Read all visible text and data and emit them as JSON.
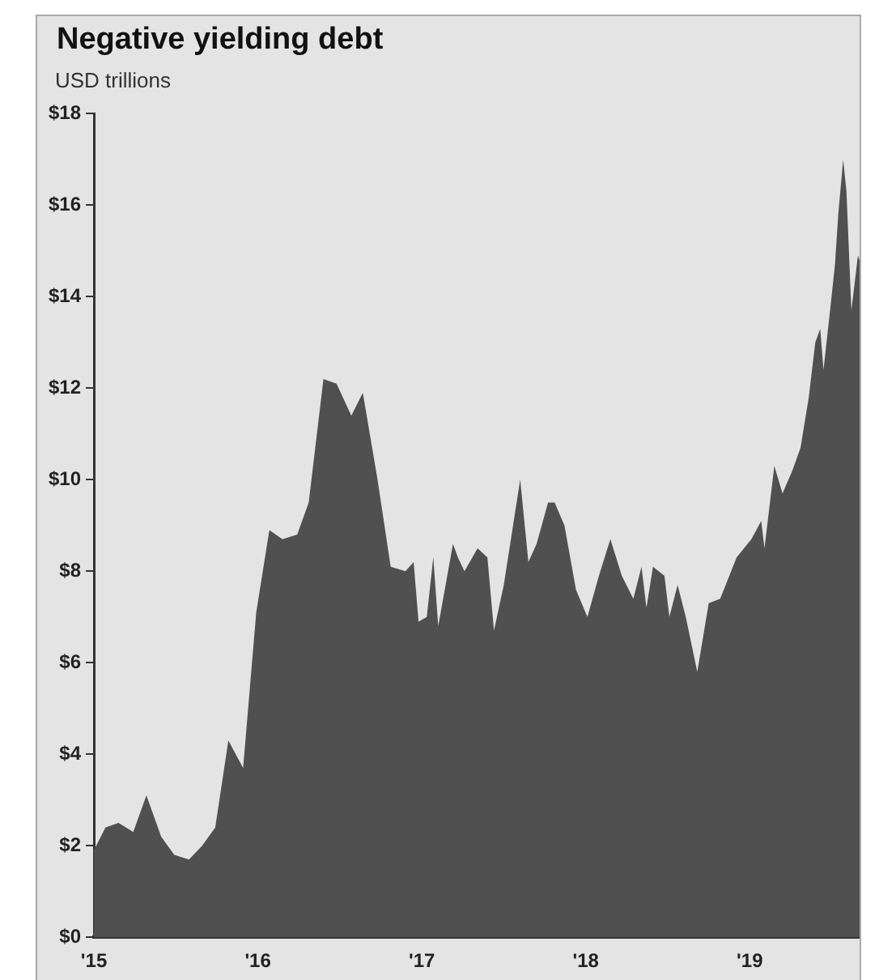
{
  "chart_data": {
    "type": "area",
    "title": "Negative yielding debt",
    "subtitle": "USD trillions",
    "x": [
      2015.0,
      2015.07,
      2015.15,
      2015.24,
      2015.32,
      2015.41,
      2015.49,
      2015.58,
      2015.66,
      2015.74,
      2015.82,
      2015.91,
      2015.99,
      2016.07,
      2016.15,
      2016.24,
      2016.31,
      2016.4,
      2016.48,
      2016.57,
      2016.64,
      2016.73,
      2016.81,
      2016.9,
      2016.95,
      2016.98,
      2017.03,
      2017.07,
      2017.1,
      2017.19,
      2017.22,
      2017.26,
      2017.34,
      2017.4,
      2017.44,
      2017.5,
      2017.6,
      2017.65,
      2017.7,
      2017.77,
      2017.81,
      2017.87,
      2017.94,
      2018.01,
      2018.08,
      2018.15,
      2018.22,
      2018.29,
      2018.34,
      2018.37,
      2018.41,
      2018.48,
      2018.51,
      2018.56,
      2018.61,
      2018.68,
      2018.75,
      2018.82,
      2018.92,
      2019.01,
      2019.07,
      2019.09,
      2019.15,
      2019.2,
      2019.26,
      2019.31,
      2019.36,
      2019.4,
      2019.43,
      2019.45,
      2019.49,
      2019.52,
      2019.54,
      2019.57,
      2019.59,
      2019.62,
      2019.66,
      2019.67
    ],
    "series": [
      {
        "color": "#505050",
        "values": [
          1.9,
          2.4,
          2.5,
          2.3,
          3.1,
          2.2,
          1.8,
          1.7,
          2.0,
          2.4,
          4.3,
          3.7,
          7.1,
          8.9,
          8.7,
          8.8,
          9.5,
          12.2,
          12.1,
          11.4,
          11.9,
          10.0,
          8.1,
          8.0,
          8.2,
          6.9,
          7.0,
          8.3,
          6.8,
          8.6,
          8.3,
          8.0,
          8.5,
          8.3,
          6.7,
          7.7,
          10.0,
          8.2,
          8.6,
          9.5,
          9.5,
          9.0,
          7.6,
          7.0,
          7.9,
          8.7,
          7.9,
          7.4,
          8.1,
          7.2,
          8.1,
          7.9,
          7.0,
          7.7,
          7.0,
          5.8,
          7.3,
          7.4,
          8.3,
          8.7,
          9.1,
          8.5,
          10.3,
          9.7,
          10.2,
          10.7,
          11.8,
          13.0,
          13.3,
          12.4,
          13.7,
          14.7,
          15.8,
          17.0,
          16.3,
          13.7,
          14.9,
          14.8
        ]
      }
    ],
    "xlim": [
      2015,
      2019.67
    ],
    "xticks": [
      {
        "value": 2015,
        "label": "'15"
      },
      {
        "value": 2016,
        "label": "'16"
      },
      {
        "value": 2017,
        "label": "'17"
      },
      {
        "value": 2018,
        "label": "'18"
      },
      {
        "value": 2019,
        "label": "'19"
      }
    ],
    "ylim": [
      0,
      18
    ],
    "yticks": [
      {
        "value": 0,
        "label": "$0"
      },
      {
        "value": 2,
        "label": "$2"
      },
      {
        "value": 4,
        "label": "$4"
      },
      {
        "value": 6,
        "label": "$6"
      },
      {
        "value": 8,
        "label": "$8"
      },
      {
        "value": 10,
        "label": "$10"
      },
      {
        "value": 12,
        "label": "$12"
      },
      {
        "value": 14,
        "label": "$14"
      },
      {
        "value": 16,
        "label": "$16"
      },
      {
        "value": 18,
        "label": "$18"
      }
    ],
    "grid": false,
    "legend": false
  }
}
